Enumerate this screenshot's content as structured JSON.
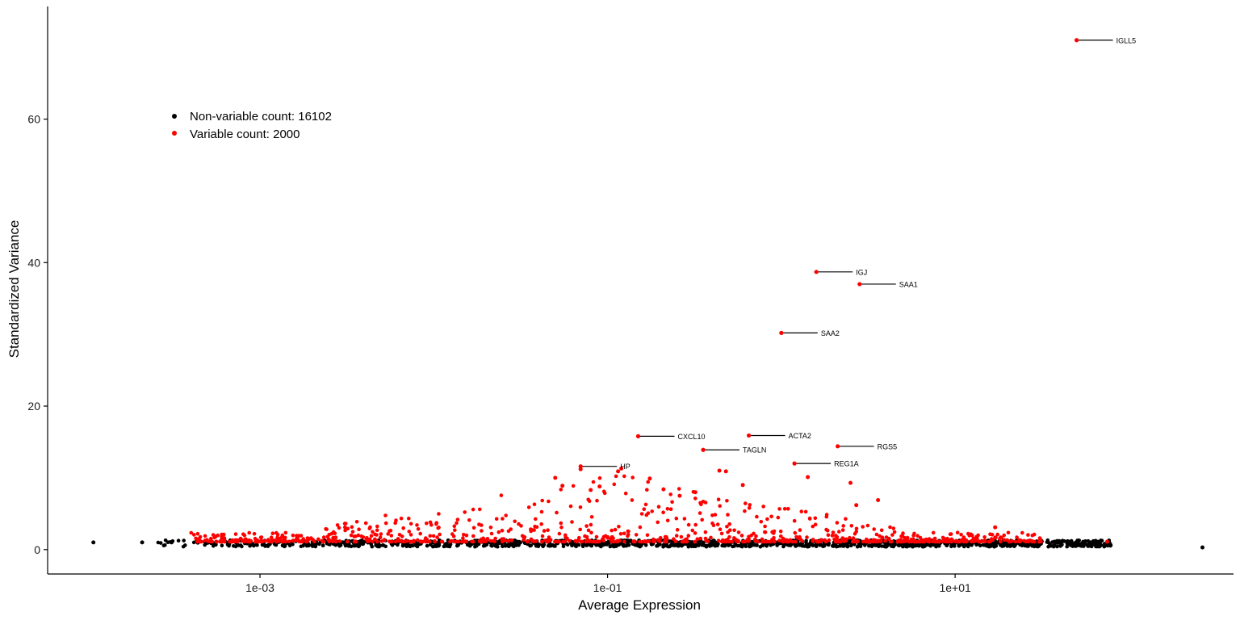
{
  "chart_data": {
    "type": "scatter",
    "xlabel": "Average Expression",
    "ylabel": "Standardized Variance",
    "x_scale": "log10",
    "xlim": [
      6e-05,
      400
    ],
    "ylim": [
      -3.4,
      75.7
    ],
    "x_ticks": [
      {
        "value": 0.001,
        "label": "1e-03"
      },
      {
        "value": 0.1,
        "label": "1e-01"
      },
      {
        "value": 10,
        "label": "1e+01"
      }
    ],
    "y_ticks": [
      {
        "value": 0,
        "label": "0"
      },
      {
        "value": 20,
        "label": "20"
      },
      {
        "value": 40,
        "label": "40"
      },
      {
        "value": 60,
        "label": "60"
      }
    ],
    "grid": false,
    "legend_position": "top-left",
    "series": [
      {
        "name": "Non-variable count: 16102",
        "color": "#000000",
        "count": 16102
      },
      {
        "name": "Variable count: 2000",
        "color": "#ff0000",
        "count": 2000
      }
    ],
    "labeled_genes": [
      {
        "gene": "IGLL5",
        "x": 50.0,
        "y": 71.0
      },
      {
        "gene": "IGJ",
        "x": 1.59,
        "y": 38.7
      },
      {
        "gene": "SAA1",
        "x": 2.82,
        "y": 37.0
      },
      {
        "gene": "SAA2",
        "x": 1.0,
        "y": 30.2
      },
      {
        "gene": "CXCL10",
        "x": 0.15,
        "y": 15.8
      },
      {
        "gene": "ACTA2",
        "x": 0.65,
        "y": 15.9
      },
      {
        "gene": "RGS5",
        "x": 2.11,
        "y": 14.4
      },
      {
        "gene": "TAGLN",
        "x": 0.355,
        "y": 13.9
      },
      {
        "gene": "REG1A",
        "x": 1.19,
        "y": 12.0
      },
      {
        "gene": "HP",
        "x": 0.07,
        "y": 11.6
      }
    ]
  }
}
